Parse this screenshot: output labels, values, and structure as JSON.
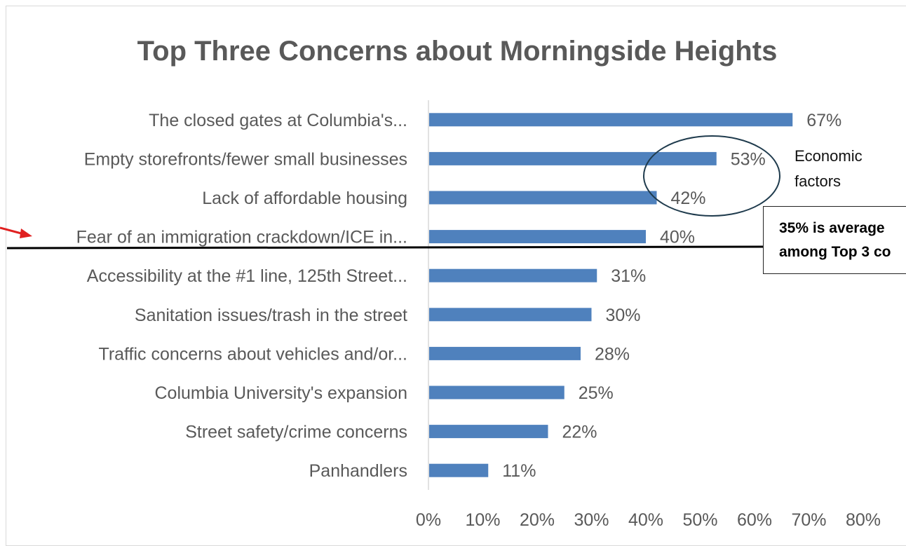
{
  "chart_data": {
    "type": "bar",
    "orientation": "horizontal",
    "title": "Top Three Concerns about Morningside Heights",
    "categories": [
      "The closed gates at Columbia's...",
      "Empty storefronts/fewer small businesses",
      "Lack of affordable housing",
      "Fear of an immigration crackdown/ICE in...",
      "Accessibility at the #1 line, 125th Street...",
      "Sanitation issues/trash in the street",
      "Traffic concerns about vehicles and/or...",
      "Columbia University's expansion",
      "Street safety/crime concerns",
      "Panhandlers"
    ],
    "values": [
      67,
      53,
      42,
      40,
      31,
      30,
      28,
      25,
      22,
      11
    ],
    "data_labels": [
      "67%",
      "53%",
      "42%",
      "40%",
      "31%",
      "30%",
      "28%",
      "25%",
      "22%",
      "11%"
    ],
    "xlim": [
      0,
      80
    ],
    "x_ticks": [
      "0%",
      "10%",
      "20%",
      "30%",
      "40%",
      "50%",
      "60%",
      "70%",
      "80%"
    ],
    "bar_color": "#4f81bd",
    "grid": false,
    "legend": "none"
  },
  "annotations": {
    "economic_label": [
      "Economic",
      "factors"
    ],
    "average_box": [
      "35% is average",
      "among Top 3 co"
    ],
    "arrow_color": "#e02020",
    "line_color": "#000000"
  }
}
